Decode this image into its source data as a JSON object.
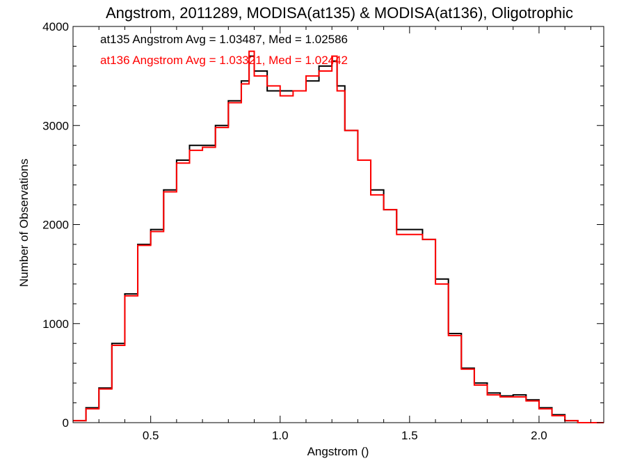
{
  "chart_data": {
    "type": "line",
    "step": true,
    "title": "Angstrom, 2011289, MODISA(at135) & MODISA(at136), Oligotrophic",
    "xlabel": "Angstrom ()",
    "ylabel": "Number of Observations",
    "xlim": [
      0.2,
      2.25
    ],
    "ylim": [
      0,
      4000
    ],
    "xticks": [
      0.5,
      1.0,
      1.5,
      2.0
    ],
    "xtick_labels": [
      "0.5",
      "1.0",
      "1.5",
      "2.0"
    ],
    "yticks": [
      0,
      1000,
      2000,
      3000,
      4000
    ],
    "ytick_labels": [
      "0",
      "1000",
      "2000",
      "3000",
      "4000"
    ],
    "grid": false,
    "series": [
      {
        "color": "#000000",
        "x": [
          0.2,
          0.25,
          0.3,
          0.35,
          0.4,
          0.45,
          0.5,
          0.55,
          0.6,
          0.65,
          0.7,
          0.75,
          0.8,
          0.85,
          0.88,
          0.9,
          0.95,
          1.0,
          1.05,
          1.1,
          1.15,
          1.2,
          1.22,
          1.25,
          1.3,
          1.35,
          1.4,
          1.45,
          1.5,
          1.55,
          1.6,
          1.65,
          1.7,
          1.75,
          1.8,
          1.85,
          1.9,
          1.95,
          2.0,
          2.05,
          2.1,
          2.15,
          2.2,
          2.25
        ],
        "y": [
          20,
          150,
          350,
          800,
          1300,
          1800,
          1950,
          2350,
          2650,
          2800,
          2800,
          3000,
          3250,
          3450,
          3700,
          3550,
          3350,
          3350,
          3350,
          3450,
          3600,
          3650,
          3400,
          2950,
          2650,
          2350,
          2150,
          1950,
          1950,
          1850,
          1450,
          900,
          550,
          400,
          300,
          270,
          280,
          230,
          150,
          80,
          20,
          0,
          0,
          0
        ]
      },
      {
        "color": "#ff0000",
        "x": [
          0.2,
          0.25,
          0.3,
          0.35,
          0.4,
          0.45,
          0.5,
          0.55,
          0.6,
          0.65,
          0.7,
          0.75,
          0.8,
          0.85,
          0.88,
          0.9,
          0.95,
          1.0,
          1.05,
          1.1,
          1.15,
          1.2,
          1.22,
          1.25,
          1.3,
          1.35,
          1.4,
          1.45,
          1.5,
          1.55,
          1.6,
          1.65,
          1.7,
          1.75,
          1.8,
          1.85,
          1.9,
          1.95,
          2.0,
          2.05,
          2.1,
          2.15,
          2.2,
          2.25
        ],
        "y": [
          20,
          140,
          340,
          780,
          1280,
          1790,
          1930,
          2330,
          2620,
          2750,
          2780,
          2980,
          3230,
          3420,
          3750,
          3500,
          3400,
          3300,
          3350,
          3500,
          3550,
          3700,
          3350,
          2950,
          2650,
          2300,
          2150,
          1900,
          1900,
          1850,
          1400,
          880,
          540,
          380,
          280,
          260,
          260,
          220,
          140,
          70,
          20,
          0,
          0,
          0
        ]
      }
    ],
    "annotations": [
      {
        "text": "at135 Angstrom Avg = 1.03487, Med = 1.02586",
        "color": "#000000"
      },
      {
        "text": "at136 Angstrom Avg = 1.03321, Med = 1.02442",
        "color": "#ff0000"
      }
    ]
  }
}
